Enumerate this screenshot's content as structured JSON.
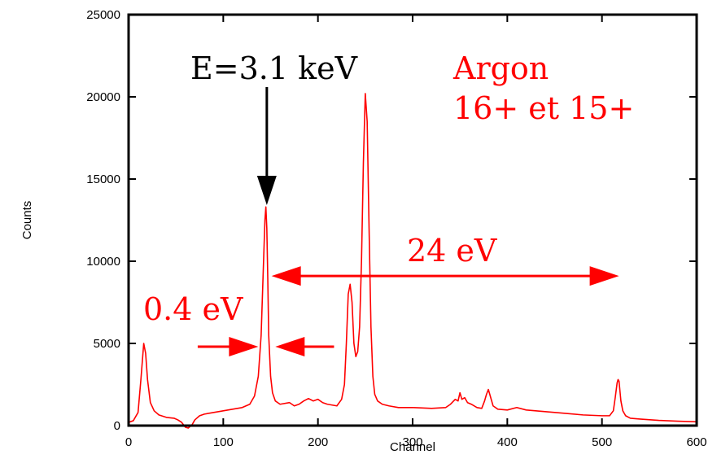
{
  "chart_data": {
    "type": "line",
    "title": "",
    "xlabel": "Channel",
    "ylabel": "Counts",
    "xlim": [
      0,
      600
    ],
    "ylim": [
      0,
      25000
    ],
    "x_ticks": [
      0,
      100,
      200,
      300,
      400,
      500,
      600
    ],
    "y_ticks": [
      0,
      5000,
      10000,
      15000,
      20000,
      25000
    ],
    "grid": false,
    "legend": "none",
    "series": [
      {
        "color": "#ff0000",
        "x": [
          0,
          5,
          10,
          13,
          16,
          18,
          20,
          23,
          27,
          32,
          40,
          48,
          52,
          56,
          60,
          63,
          67,
          70,
          75,
          80,
          90,
          100,
          110,
          120,
          128,
          133,
          137,
          140,
          142,
          144,
          145,
          146,
          147,
          148,
          150,
          152,
          155,
          160,
          170,
          175,
          180,
          185,
          190,
          195,
          200,
          205,
          210,
          215,
          220,
          225,
          228,
          230,
          232,
          234,
          236,
          238,
          240,
          242,
          244,
          246,
          248,
          250,
          252,
          254,
          256,
          258,
          260,
          263,
          268,
          275,
          285,
          300,
          320,
          335,
          340,
          345,
          348,
          350,
          352,
          355,
          358,
          362,
          368,
          373,
          376,
          378,
          380,
          382,
          385,
          390,
          400,
          410,
          420,
          440,
          460,
          480,
          500,
          508,
          512,
          514,
          516,
          517,
          518,
          520,
          522,
          525,
          530,
          540,
          560,
          580,
          600
        ],
        "y": [
          200,
          300,
          800,
          2800,
          5000,
          4400,
          2800,
          1400,
          900,
          650,
          500,
          450,
          350,
          200,
          -100,
          -150,
          50,
          350,
          600,
          700,
          800,
          900,
          1000,
          1100,
          1300,
          1800,
          3000,
          5500,
          9000,
          12500,
          13300,
          12000,
          9000,
          5500,
          3000,
          2000,
          1500,
          1300,
          1400,
          1200,
          1300,
          1500,
          1650,
          1500,
          1600,
          1400,
          1300,
          1250,
          1200,
          1600,
          2500,
          5000,
          8000,
          8600,
          7500,
          5000,
          4200,
          4500,
          6000,
          10000,
          16000,
          20200,
          18500,
          12000,
          6000,
          3000,
          1900,
          1500,
          1300,
          1200,
          1100,
          1100,
          1050,
          1100,
          1300,
          1600,
          1500,
          2000,
          1600,
          1700,
          1400,
          1300,
          1100,
          1050,
          1500,
          1900,
          2200,
          1800,
          1200,
          1000,
          950,
          1100,
          950,
          850,
          750,
          650,
          600,
          600,
          900,
          1700,
          2600,
          2800,
          2700,
          1500,
          900,
          600,
          450,
          400,
          320,
          270,
          230
        ]
      }
    ],
    "annotations": [
      {
        "id": "energy",
        "text": "E=3.1 keV",
        "color": "#000000"
      },
      {
        "id": "element",
        "text": "Argon",
        "color": "#ff0000"
      },
      {
        "id": "charge",
        "text": "16+ et 15+",
        "color": "#ff0000"
      },
      {
        "id": "span",
        "text": "24 eV",
        "color": "#ff0000"
      },
      {
        "id": "width",
        "text": "0.4 eV",
        "color": "#ff0000"
      }
    ]
  }
}
